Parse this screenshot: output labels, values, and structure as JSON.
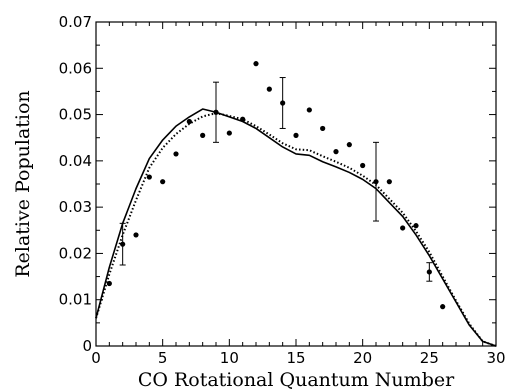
{
  "chart_data": {
    "type": "scatter",
    "title": "",
    "xlabel": "CO Rotational Quantum Number",
    "ylabel": "Relative Population",
    "xlim": [
      0,
      30
    ],
    "ylim": [
      0,
      0.07
    ],
    "x_ticks": [
      0,
      5,
      10,
      15,
      20,
      25,
      30
    ],
    "x_tick_labels": [
      "0",
      "5",
      "10",
      "15",
      "20",
      "25",
      "30"
    ],
    "y_ticks": [
      0,
      0.01,
      0.02,
      0.03,
      0.04,
      0.05,
      0.06,
      0.07
    ],
    "y_tick_labels": [
      "0",
      "0.01",
      "0.02",
      "0.03",
      "0.04",
      "0.05",
      "0.06",
      "0.07"
    ],
    "grid": false,
    "legend": "none",
    "series": [
      {
        "style": "markers",
        "color": "#000000",
        "points": [
          {
            "x": 1,
            "y": 0.0135
          },
          {
            "x": 2,
            "y": 0.022,
            "err": 0.0045
          },
          {
            "x": 3,
            "y": 0.024
          },
          {
            "x": 4,
            "y": 0.0365
          },
          {
            "x": 5,
            "y": 0.0355
          },
          {
            "x": 6,
            "y": 0.0415
          },
          {
            "x": 7,
            "y": 0.0485
          },
          {
            "x": 8,
            "y": 0.0455
          },
          {
            "x": 9,
            "y": 0.0505,
            "err": 0.0065
          },
          {
            "x": 10,
            "y": 0.046
          },
          {
            "x": 11,
            "y": 0.049
          },
          {
            "x": 12,
            "y": 0.061
          },
          {
            "x": 13,
            "y": 0.0555
          },
          {
            "x": 14,
            "y": 0.0525,
            "err": 0.0055
          },
          {
            "x": 15,
            "y": 0.0455
          },
          {
            "x": 16,
            "y": 0.051
          },
          {
            "x": 17,
            "y": 0.047
          },
          {
            "x": 18,
            "y": 0.042
          },
          {
            "x": 19,
            "y": 0.0435
          },
          {
            "x": 20,
            "y": 0.039
          },
          {
            "x": 21,
            "y": 0.0355,
            "err": 0.0085
          },
          {
            "x": 22,
            "y": 0.0355
          },
          {
            "x": 23,
            "y": 0.0255
          },
          {
            "x": 24,
            "y": 0.026
          },
          {
            "x": 25,
            "y": 0.016,
            "err": 0.002
          },
          {
            "x": 26,
            "y": 0.0085
          }
        ]
      },
      {
        "style": "solid",
        "color": "#000000",
        "x": [
          0,
          1,
          2,
          3,
          4,
          5,
          6,
          7,
          8,
          9,
          10,
          11,
          12,
          13,
          14,
          15,
          16,
          17,
          18,
          19,
          20,
          21,
          22,
          23,
          24,
          25,
          26,
          27,
          28,
          29,
          30
        ],
        "values": [
          0.006,
          0.017,
          0.0265,
          0.034,
          0.0405,
          0.0445,
          0.0475,
          0.0495,
          0.0512,
          0.0505,
          0.0495,
          0.0485,
          0.047,
          0.045,
          0.043,
          0.0415,
          0.0412,
          0.0398,
          0.0387,
          0.0375,
          0.036,
          0.034,
          0.031,
          0.028,
          0.024,
          0.0195,
          0.0145,
          0.0095,
          0.0045,
          0.001,
          0.0
        ]
      },
      {
        "style": "dotted",
        "color": "#000000",
        "x": [
          0,
          1,
          2,
          3,
          4,
          5,
          6,
          7,
          8,
          9,
          10,
          11,
          12,
          13,
          14,
          15,
          16,
          17,
          18,
          19,
          20,
          21,
          22,
          23,
          24,
          25,
          26,
          27,
          28,
          29,
          30
        ],
        "values": [
          0.006,
          0.0155,
          0.024,
          0.0315,
          0.0385,
          0.0428,
          0.0458,
          0.048,
          0.0496,
          0.0503,
          0.0497,
          0.049,
          0.0475,
          0.0457,
          0.0438,
          0.0425,
          0.0423,
          0.041,
          0.0398,
          0.0385,
          0.0368,
          0.0348,
          0.0318,
          0.0288,
          0.0248,
          0.0203,
          0.015,
          0.0098,
          0.0048,
          0.001,
          0.0
        ]
      }
    ]
  }
}
